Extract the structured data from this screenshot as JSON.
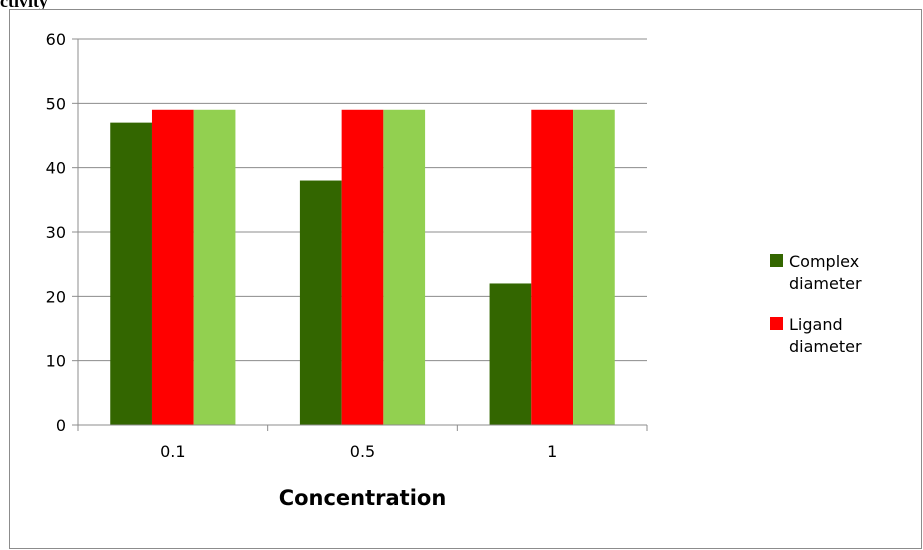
{
  "caption": "ctivity",
  "chart_data": {
    "type": "bar",
    "categories": [
      "0.1",
      "0.5",
      "1"
    ],
    "series": [
      {
        "name": "Complex diameter",
        "values": [
          47,
          38,
          22
        ],
        "color": "#336600"
      },
      {
        "name": "Ligand diameter",
        "values": [
          49,
          49,
          49
        ],
        "color": "#ff0000"
      },
      {
        "name": "",
        "values": [
          49,
          49,
          49
        ],
        "color": "#92d050"
      }
    ],
    "legend_lines": [
      [
        "Complex",
        "diameter"
      ],
      [
        "Ligand",
        "diameter"
      ]
    ],
    "xlabel": "Concentration",
    "ylabel": "",
    "ylim": [
      0,
      60
    ],
    "yticks": [
      0,
      10,
      20,
      30,
      40,
      50,
      60
    ],
    "grid": true,
    "legend_position": "right",
    "gridline_color": "#8c8c8c",
    "axis_color": "#8c8c8c"
  }
}
